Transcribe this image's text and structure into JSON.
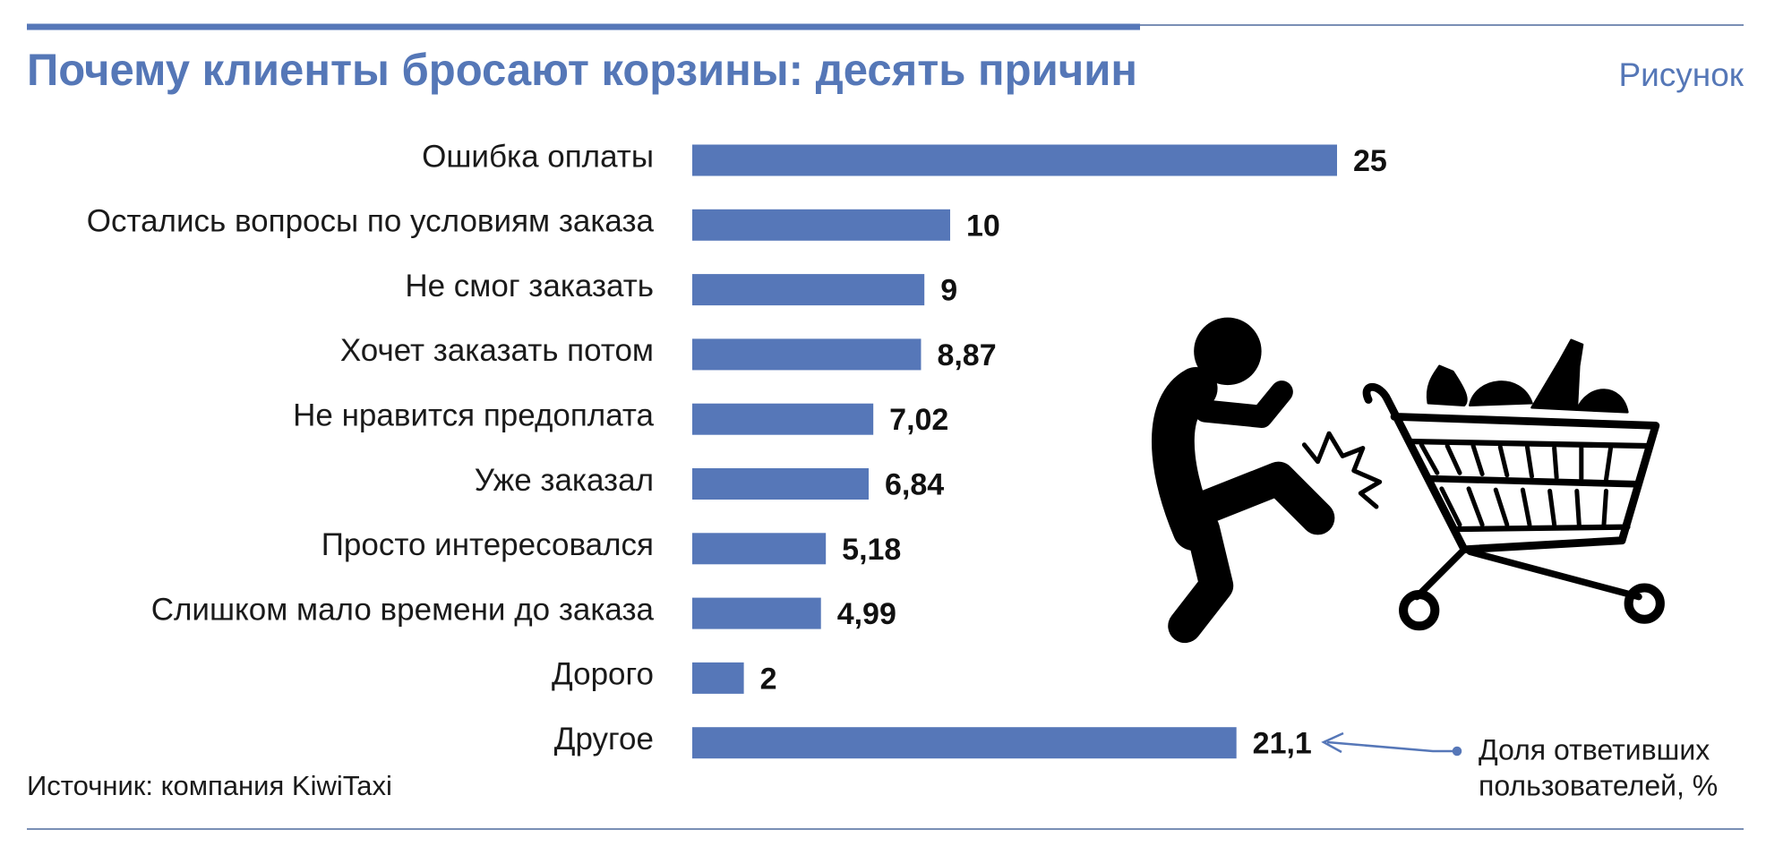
{
  "chart_data": {
    "type": "bar",
    "orientation": "horizontal",
    "title": "Почему клиенты бросают корзины: десять причин",
    "subtitle": "Рисунок",
    "source": "Источник: компания KiwiTaxi",
    "annotation": [
      "Доля ответивших",
      "пользователей, %"
    ],
    "color": "#5677b8",
    "categories": [
      "Ошибка оплаты",
      "Остались вопросы по условиям заказа",
      "Не смог заказать",
      "Хочет заказать потом",
      "Не нравится предоплата",
      "Уже заказал",
      "Просто интересовался",
      "Слишком мало времени до заказа",
      "Дорого",
      "Другое"
    ],
    "values": [
      25,
      10,
      9,
      8.87,
      7.02,
      6.84,
      5.18,
      4.99,
      2,
      21.1
    ],
    "value_labels": [
      "25",
      "10",
      "9",
      "8,87",
      "7,02",
      "6,84",
      "5,18",
      "4,99",
      "2",
      "21,1"
    ]
  }
}
